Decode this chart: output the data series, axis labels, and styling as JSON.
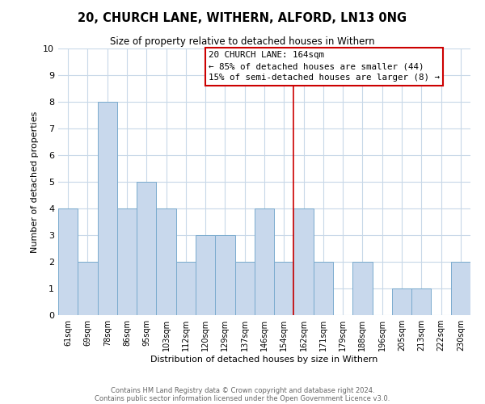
{
  "title": "20, CHURCH LANE, WITHERN, ALFORD, LN13 0NG",
  "subtitle": "Size of property relative to detached houses in Withern",
  "xlabel": "Distribution of detached houses by size in Withern",
  "ylabel": "Number of detached properties",
  "bar_labels": [
    "61sqm",
    "69sqm",
    "78sqm",
    "86sqm",
    "95sqm",
    "103sqm",
    "112sqm",
    "120sqm",
    "129sqm",
    "137sqm",
    "146sqm",
    "154sqm",
    "162sqm",
    "171sqm",
    "179sqm",
    "188sqm",
    "196sqm",
    "205sqm",
    "213sqm",
    "222sqm",
    "230sqm"
  ],
  "bar_values": [
    4,
    2,
    8,
    4,
    5,
    4,
    2,
    3,
    3,
    2,
    4,
    2,
    4,
    2,
    0,
    2,
    0,
    1,
    1,
    0,
    2
  ],
  "bar_color": "#c8d8ec",
  "bar_edge_color": "#7aabce",
  "property_line_index": 12,
  "property_line_color": "#cc0000",
  "ylim": [
    0,
    10
  ],
  "yticks": [
    0,
    1,
    2,
    3,
    4,
    5,
    6,
    7,
    8,
    9,
    10
  ],
  "annotation_title": "20 CHURCH LANE: 164sqm",
  "annotation_line1": "← 85% of detached houses are smaller (44)",
  "annotation_line2": "15% of semi-detached houses are larger (8) →",
  "annotation_box_color": "#ffffff",
  "annotation_box_edge": "#cc0000",
  "footer_line1": "Contains HM Land Registry data © Crown copyright and database right 2024.",
  "footer_line2": "Contains public sector information licensed under the Open Government Licence v3.0.",
  "background_color": "#ffffff",
  "grid_color": "#c8d8e8"
}
